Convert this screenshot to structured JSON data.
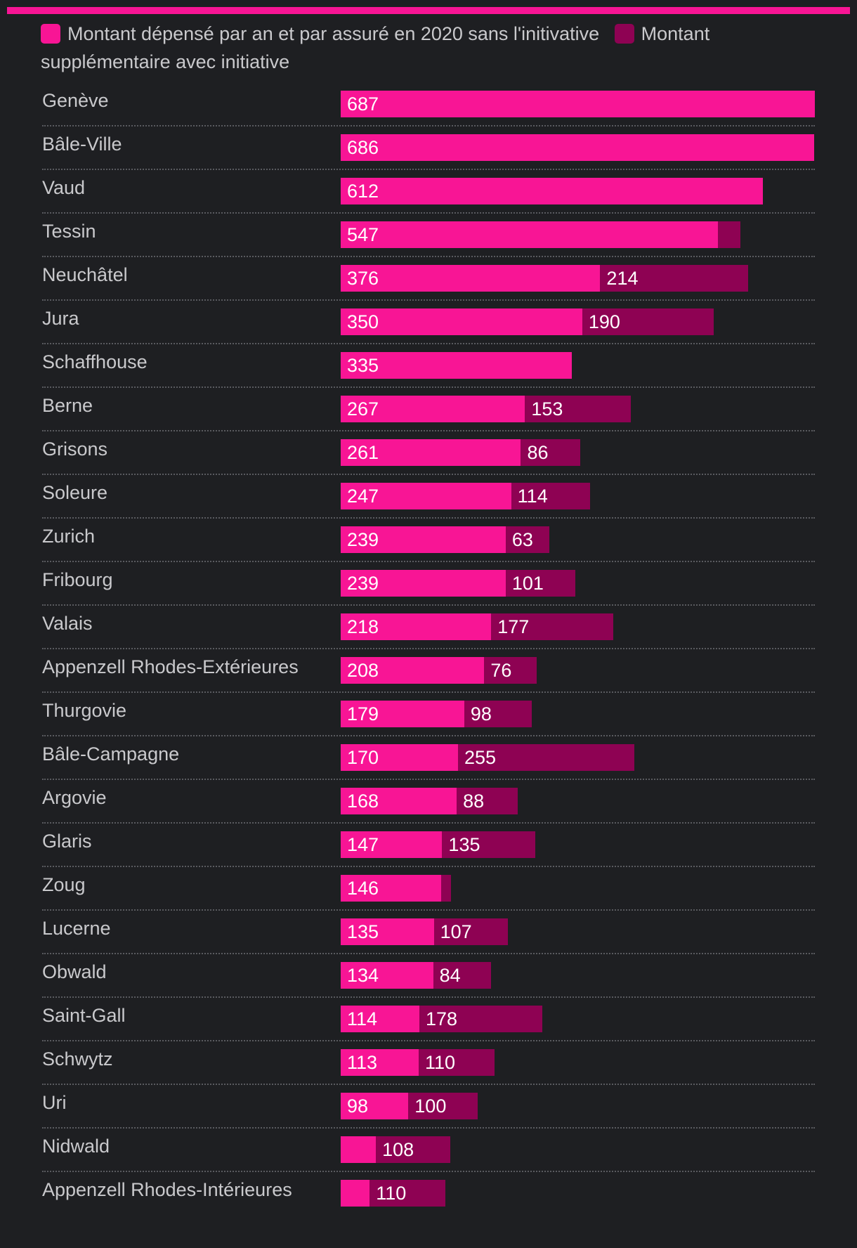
{
  "colors": {
    "background": "#1e1f22",
    "base": "#f81595",
    "extra": "#8e0253",
    "text": "#c9c9cc",
    "accent_bar": "#f81595"
  },
  "legend": {
    "base_label": "Montant dépensé par an et par assuré en 2020 sans l'initivative",
    "extra_label": "Montant supplémentaire avec initiative"
  },
  "chart_data": {
    "type": "bar",
    "orientation": "horizontal",
    "stacked": true,
    "xlim": [
      0,
      687
    ],
    "categories": [
      "Genève",
      "Bâle-Ville",
      "Vaud",
      "Tessin",
      "Neuchâtel",
      "Jura",
      "Schaffhouse",
      "Berne",
      "Grisons",
      "Soleure",
      "Zurich",
      "Fribourg",
      "Valais",
      "Appenzell Rhodes-Extérieures",
      "Thurgovie",
      "Bâle-Campagne",
      "Argovie",
      "Glaris",
      "Zoug",
      "Lucerne",
      "Obwald",
      "Saint-Gall",
      "Schwytz",
      "Uri",
      "Nidwald",
      "Appenzell Rhodes-Intérieures"
    ],
    "series": [
      {
        "name": "Montant dépensé par an et par assuré en 2020 sans l'initivative",
        "values": [
          687,
          686,
          612,
          547,
          376,
          350,
          335,
          267,
          261,
          247,
          239,
          239,
          218,
          208,
          179,
          170,
          168,
          147,
          146,
          135,
          134,
          114,
          113,
          98,
          51,
          42
        ],
        "labels": [
          "687",
          "686",
          "612",
          "547",
          "376",
          "350",
          "335",
          "267",
          "261",
          "247",
          "239",
          "239",
          "218",
          "208",
          "179",
          "170",
          "168",
          "147",
          "146",
          "135",
          "134",
          "114",
          "113",
          "98",
          "",
          ""
        ]
      },
      {
        "name": "Montant supplémentaire avec initiative",
        "values": [
          0,
          0,
          0,
          32,
          214,
          190,
          0,
          153,
          86,
          114,
          63,
          101,
          177,
          76,
          98,
          255,
          88,
          135,
          14,
          107,
          84,
          178,
          110,
          100,
          108,
          110
        ],
        "labels": [
          "",
          "",
          "",
          "",
          "214",
          "190",
          "",
          "153",
          "86",
          "114",
          "63",
          "101",
          "177",
          "76",
          "98",
          "255",
          "88",
          "135",
          "",
          "107",
          "84",
          "178",
          "110",
          "100",
          "108",
          "110"
        ]
      }
    ]
  }
}
